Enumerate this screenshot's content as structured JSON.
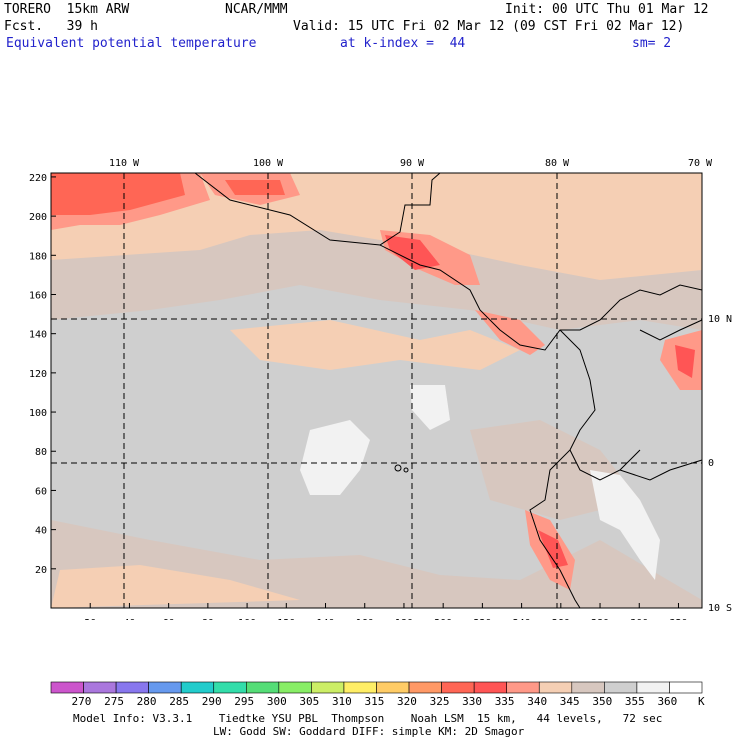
{
  "header": {
    "model": "TORERO  15km ARW",
    "org": "NCAR/MMM",
    "init": "Init: 00 UTC Thu 01 Mar 12",
    "fcst": "Fcst.   39 h",
    "valid": "Valid: 15 UTC Fri 02 Mar 12 (09 CST Fri 02 Mar 12)",
    "field": "Equivalent potential temperature",
    "level": "at k-index =  44",
    "smooth": "sm= 2"
  },
  "axes": {
    "x_ticks": [
      "20",
      "40",
      "60",
      "80",
      "100",
      "120",
      "140",
      "160",
      "180",
      "200",
      "220",
      "240",
      "260",
      "280",
      "300",
      "320"
    ],
    "y_ticks": [
      "20",
      "40",
      "60",
      "80",
      "100",
      "120",
      "140",
      "160",
      "180",
      "200",
      "220"
    ],
    "lon_labels": [
      "110 W",
      "100 W",
      "90 W",
      "80 W",
      "70 W"
    ],
    "lat_labels": [
      "10 N",
      "0",
      "10 S"
    ]
  },
  "colorbar": {
    "unit": "K",
    "values": [
      "270",
      "275",
      "280",
      "285",
      "290",
      "295",
      "300",
      "305",
      "310",
      "315",
      "320",
      "325",
      "330",
      "335",
      "340",
      "345",
      "350",
      "355",
      "360"
    ],
    "colors": [
      "#cc55cc",
      "#aa77dd",
      "#8877ee",
      "#6699ee",
      "#22cccc",
      "#33ddaa",
      "#55dd77",
      "#88ee66",
      "#ccee66",
      "#ffee66",
      "#ffcc66",
      "#ff9966",
      "#ff6655",
      "#ff5555",
      "#ff9988",
      "#f5cfb4",
      "#d7c7bf",
      "#cfcfcf",
      "#f2f2f2",
      "#ffffff"
    ]
  },
  "footer": {
    "line1": "Model Info: V3.3.1    Tiedtke YSU PBL  Thompson    Noah LSM  15 km,   44 levels,   72 sec",
    "line2": "LW: Godd SW: Goddard DIFF: simple KM: 2D Smagor"
  }
}
